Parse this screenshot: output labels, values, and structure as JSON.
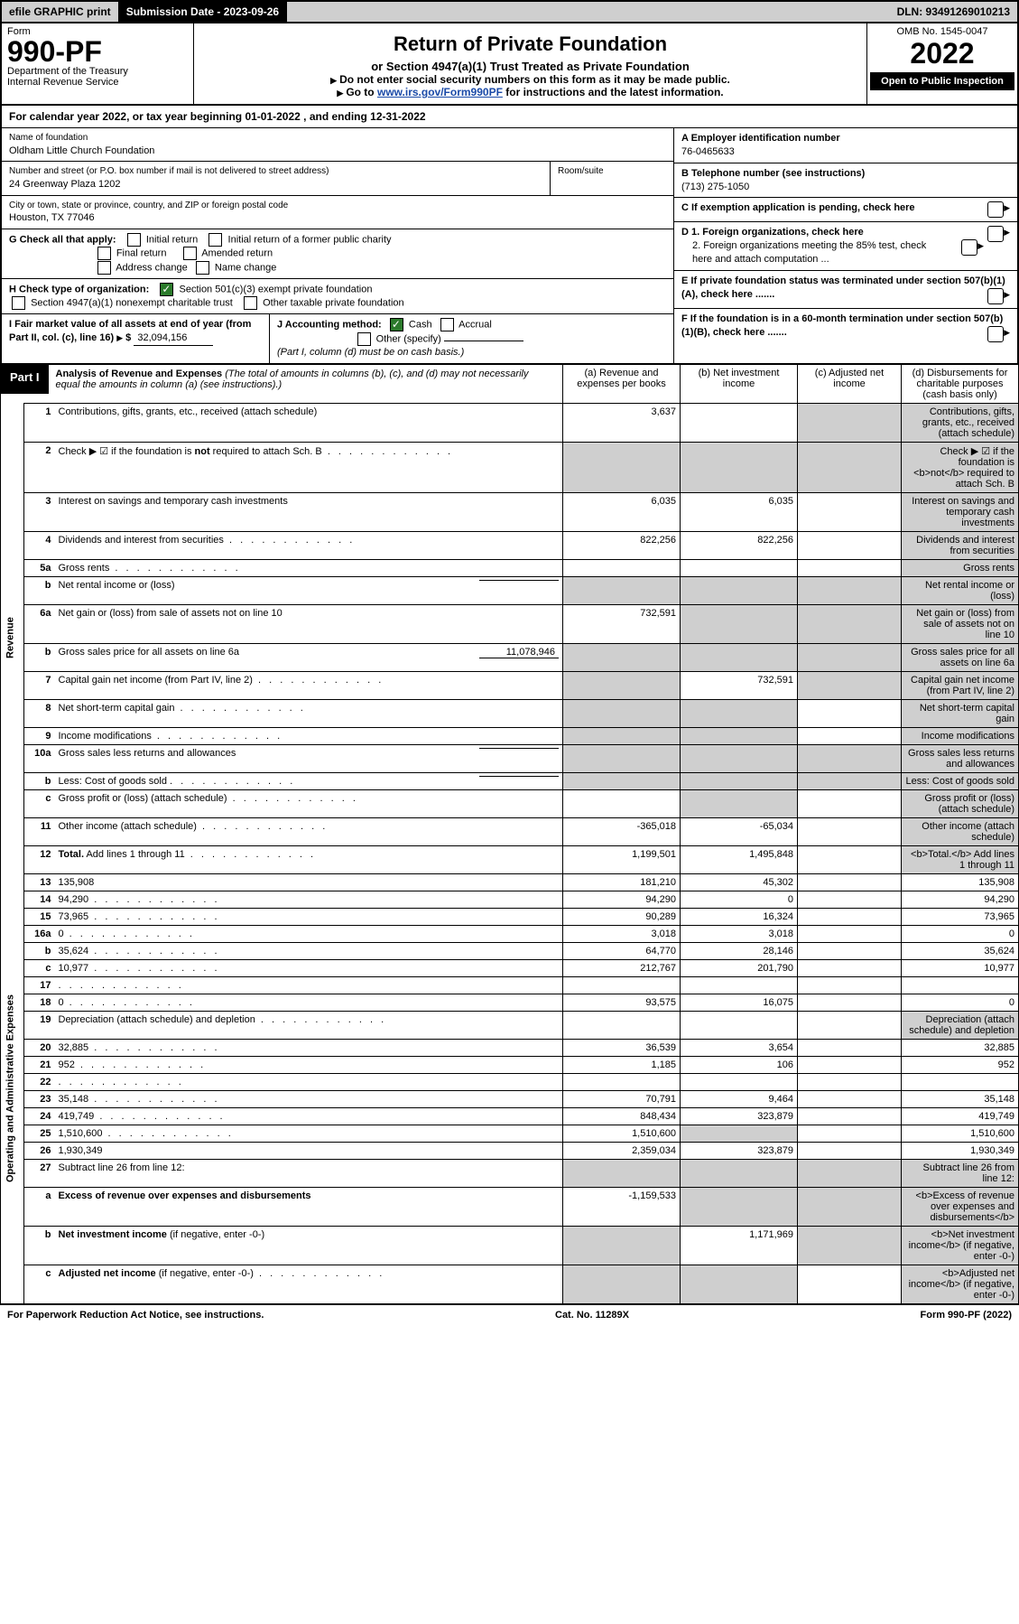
{
  "topbar": {
    "efile": "efile GRAPHIC print",
    "submission_label": "Submission Date - 2023-09-26",
    "dln": "DLN: 93491269010213"
  },
  "header": {
    "form_word": "Form",
    "form_no": "990-PF",
    "dept": "Department of the Treasury",
    "irs": "Internal Revenue Service",
    "title": "Return of Private Foundation",
    "subtitle": "or Section 4947(a)(1) Trust Treated as Private Foundation",
    "ssn_note": "Do not enter social security numbers on this form as it may be made public.",
    "goto_pre": "Go to ",
    "goto_link": "www.irs.gov/Form990PF",
    "goto_post": " for instructions and the latest information.",
    "omb": "OMB No. 1545-0047",
    "year": "2022",
    "open": "Open to Public Inspection"
  },
  "calyear": "For calendar year 2022, or tax year beginning 01-01-2022             , and ending 12-31-2022",
  "id": {
    "name_label": "Name of foundation",
    "name": "Oldham Little Church Foundation",
    "ein_label": "A Employer identification number",
    "ein": "76-0465633",
    "addr_label": "Number and street (or P.O. box number if mail is not delivered to street address)",
    "addr": "24 Greenway Plaza 1202",
    "room_label": "Room/suite",
    "tel_label": "B Telephone number (see instructions)",
    "tel": "(713) 275-1050",
    "city_label": "City or town, state or province, country, and ZIP or foreign postal code",
    "city": "Houston, TX  77046",
    "c_label": "C If exemption application is pending, check here",
    "g_label": "G Check all that apply:",
    "g_initial": "Initial return",
    "g_initial_pub": "Initial return of a former public charity",
    "g_final": "Final return",
    "g_amended": "Amended return",
    "g_addr": "Address change",
    "g_name": "Name change",
    "d1": "D 1. Foreign organizations, check here",
    "d2": "2. Foreign organizations meeting the 85% test, check here and attach computation ...",
    "h_label": "H Check type of organization:",
    "h_501c3": "Section 501(c)(3) exempt private foundation",
    "h_4947": "Section 4947(a)(1) nonexempt charitable trust",
    "h_other": "Other taxable private foundation",
    "e_label": "E If private foundation status was terminated under section 507(b)(1)(A), check here .......",
    "i_label": "I Fair market value of all assets at end of year (from Part II, col. (c), line 16)",
    "i_value": "32,094,156",
    "j_label": "J Accounting method:",
    "j_cash": "Cash",
    "j_accrual": "Accrual",
    "j_other": "Other (specify)",
    "j_note": "(Part I, column (d) must be on cash basis.)",
    "f_label": "F If the foundation is in a 60-month termination under section 507(b)(1)(B), check here ......."
  },
  "part1": {
    "tag": "Part I",
    "title": "Analysis of Revenue and Expenses",
    "note": " (The total of amounts in columns (b), (c), and (d) may not necessarily equal the amounts in column (a) (see instructions).)",
    "col_a": "(a) Revenue and expenses per books",
    "col_b": "(b) Net investment income",
    "col_c": "(c) Adjusted net income",
    "col_d": "(d) Disbursements for charitable purposes (cash basis only)",
    "revenue_label": "Revenue",
    "expenses_label": "Operating and Administrative Expenses"
  },
  "rows": [
    {
      "n": "1",
      "d": "Contributions, gifts, grants, etc., received (attach schedule)",
      "a": "3,637",
      "b": "",
      "c_grey": true,
      "d_grey": true
    },
    {
      "n": "2",
      "d": "Check ▶ ☑ if the foundation is <b>not</b> required to attach Sch. B",
      "dots": true,
      "a": "",
      "b_grey": true,
      "c_grey": true,
      "d_grey": true,
      "a_grey": true
    },
    {
      "n": "3",
      "d": "Interest on savings and temporary cash investments",
      "a": "6,035",
      "b": "6,035",
      "d_grey": true
    },
    {
      "n": "4",
      "d": "Dividends and interest from securities",
      "dots": true,
      "a": "822,256",
      "b": "822,256",
      "d_grey": true
    },
    {
      "n": "5a",
      "d": "Gross rents",
      "dots": true,
      "a": "",
      "b": "",
      "d_grey": true
    },
    {
      "n": "b",
      "d": "Net rental income or (loss)",
      "inline": "",
      "a_grey": true,
      "b_grey": true,
      "c_grey": true,
      "d_grey": true
    },
    {
      "n": "6a",
      "d": "Net gain or (loss) from sale of assets not on line 10",
      "a": "732,591",
      "b_grey": true,
      "c_grey": true,
      "d_grey": true
    },
    {
      "n": "b",
      "d": "Gross sales price for all assets on line 6a",
      "inline": "11,078,946",
      "a_grey": true,
      "b_grey": true,
      "c_grey": true,
      "d_grey": true
    },
    {
      "n": "7",
      "d": "Capital gain net income (from Part IV, line 2)",
      "dots": true,
      "a_grey": true,
      "b": "732,591",
      "c_grey": true,
      "d_grey": true
    },
    {
      "n": "8",
      "d": "Net short-term capital gain",
      "dots": true,
      "a_grey": true,
      "b_grey": true,
      "d_grey": true
    },
    {
      "n": "9",
      "d": "Income modifications",
      "dots": true,
      "a_grey": true,
      "b_grey": true,
      "d_grey": true
    },
    {
      "n": "10a",
      "d": "Gross sales less returns and allowances",
      "inline": "",
      "a_grey": true,
      "b_grey": true,
      "c_grey": true,
      "d_grey": true
    },
    {
      "n": "b",
      "d": "Less: Cost of goods sold",
      "dots": true,
      "inline": "",
      "a_grey": true,
      "b_grey": true,
      "c_grey": true,
      "d_grey": true
    },
    {
      "n": "c",
      "d": "Gross profit or (loss) (attach schedule)",
      "dots": true,
      "a": "",
      "b_grey": true,
      "d_grey": true
    },
    {
      "n": "11",
      "d": "Other income (attach schedule)",
      "dots": true,
      "a": "-365,018",
      "b": "-65,034",
      "d_grey": true
    },
    {
      "n": "12",
      "d": "<b>Total.</b> Add lines 1 through 11",
      "dots": true,
      "a": "1,199,501",
      "b": "1,495,848",
      "d_grey": true
    },
    {
      "n": "13",
      "d": "135,908",
      "a": "181,210",
      "b": "45,302"
    },
    {
      "n": "14",
      "d": "94,290",
      "dots": true,
      "a": "94,290",
      "b": "0"
    },
    {
      "n": "15",
      "d": "73,965",
      "dots": true,
      "a": "90,289",
      "b": "16,324"
    },
    {
      "n": "16a",
      "d": "0",
      "dots": true,
      "a": "3,018",
      "b": "3,018"
    },
    {
      "n": "b",
      "d": "35,624",
      "dots": true,
      "a": "64,770",
      "b": "28,146"
    },
    {
      "n": "c",
      "d": "10,977",
      "dots": true,
      "a": "212,767",
      "b": "201,790"
    },
    {
      "n": "17",
      "d": "",
      "dots": true,
      "a": "",
      "b": ""
    },
    {
      "n": "18",
      "d": "0",
      "dots": true,
      "a": "93,575",
      "b": "16,075"
    },
    {
      "n": "19",
      "d": "Depreciation (attach schedule) and depletion",
      "dots": true,
      "a": "",
      "b": "",
      "d_grey": true
    },
    {
      "n": "20",
      "d": "32,885",
      "dots": true,
      "a": "36,539",
      "b": "3,654"
    },
    {
      "n": "21",
      "d": "952",
      "dots": true,
      "a": "1,185",
      "b": "106"
    },
    {
      "n": "22",
      "d": "",
      "dots": true,
      "a": "",
      "b": ""
    },
    {
      "n": "23",
      "d": "35,148",
      "dots": true,
      "a": "70,791",
      "b": "9,464"
    },
    {
      "n": "24",
      "d": "419,749",
      "dots": true,
      "a": "848,434",
      "b": "323,879"
    },
    {
      "n": "25",
      "d": "1,510,600",
      "dots": true,
      "a": "1,510,600",
      "b_grey": true
    },
    {
      "n": "26",
      "d": "1,930,349",
      "a": "2,359,034",
      "b": "323,879"
    },
    {
      "n": "27",
      "d": "Subtract line 26 from line 12:",
      "a_grey": true,
      "b_grey": true,
      "c_grey": true,
      "d_grey": true
    },
    {
      "n": "a",
      "d": "<b>Excess of revenue over expenses and disbursements</b>",
      "a": "-1,159,533",
      "b_grey": true,
      "c_grey": true,
      "d_grey": true
    },
    {
      "n": "b",
      "d": "<b>Net investment income</b> (if negative, enter -0-)",
      "a_grey": true,
      "b": "1,171,969",
      "c_grey": true,
      "d_grey": true
    },
    {
      "n": "c",
      "d": "<b>Adjusted net income</b> (if negative, enter -0-)",
      "dots": true,
      "a_grey": true,
      "b_grey": true,
      "d_grey": true
    }
  ],
  "footer": {
    "left": "For Paperwork Reduction Act Notice, see instructions.",
    "mid": "Cat. No. 11289X",
    "right": "Form 990-PF (2022)"
  },
  "layout": {
    "col_widths": {
      "side": 26,
      "lineno": 34,
      "a": 130,
      "b": 130,
      "c": 115,
      "d": 130
    }
  }
}
